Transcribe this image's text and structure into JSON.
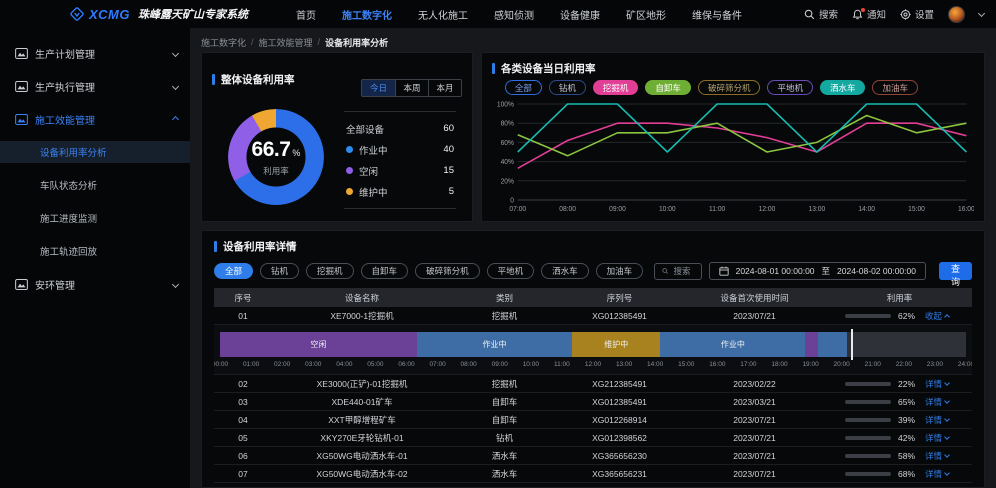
{
  "topbar": {
    "brand": {
      "logo_text": "XCMG",
      "title": "珠峰露天矿山专家系统"
    },
    "nav": [
      {
        "label": "首页",
        "active": false
      },
      {
        "label": "施工数字化",
        "active": true
      },
      {
        "label": "无人化施工",
        "active": false
      },
      {
        "label": "感知侦测",
        "active": false
      },
      {
        "label": "设备健康",
        "active": false
      },
      {
        "label": "矿区地形",
        "active": false
      },
      {
        "label": "维保与备件",
        "active": false
      }
    ],
    "actions": {
      "search": "搜索",
      "notifications": "通知",
      "settings": "设置"
    }
  },
  "sidebar": {
    "items": [
      {
        "label": "生产计划管理",
        "expanded": false,
        "active": false,
        "children": []
      },
      {
        "label": "生产执行管理",
        "expanded": false,
        "active": false,
        "children": []
      },
      {
        "label": "施工效能管理",
        "expanded": true,
        "active": true,
        "children": [
          {
            "label": "设备利用率分析",
            "active": true
          },
          {
            "label": "车队状态分析",
            "active": false
          },
          {
            "label": "施工进度监测",
            "active": false
          },
          {
            "label": "施工轨迹回放",
            "active": false
          }
        ]
      },
      {
        "label": "安环管理",
        "expanded": false,
        "active": false,
        "children": []
      }
    ]
  },
  "breadcrumb": [
    "施工数字化",
    "施工效能管理",
    "设备利用率分析"
  ],
  "overall_panel": {
    "title": "整体设备利用率",
    "tabs": [
      {
        "label": "今日",
        "active": true
      },
      {
        "label": "本周",
        "active": false
      },
      {
        "label": "本月",
        "active": false
      }
    ],
    "donut": {
      "value": "66.7",
      "unit": "%",
      "label": "利用率",
      "segments": [
        {
          "name": "作业中",
          "value": 40,
          "color": "#2d6fe8"
        },
        {
          "name": "空闲",
          "value": 15,
          "color": "#8f5fe8"
        },
        {
          "name": "维护中",
          "value": 5,
          "color": "#f0a732"
        }
      ]
    },
    "stats": [
      {
        "label": "全部设备",
        "value": 60,
        "color": null
      },
      {
        "label": "作业中",
        "value": 40,
        "color": "#2d8cf0"
      },
      {
        "label": "空闲",
        "value": 15,
        "color": "#8f5fe8"
      },
      {
        "label": "维护中",
        "value": 5,
        "color": "#f0a732"
      }
    ]
  },
  "daily_panel": {
    "title": "各类设备当日利用率",
    "filters": [
      {
        "label": "全部",
        "variant": "outline",
        "color": "#2e6de4",
        "text_color": "#7aa2f0"
      },
      {
        "label": "钻机",
        "variant": "outline",
        "color": "#2b4a8f",
        "text_color": "#c6cbd4"
      },
      {
        "label": "挖掘机",
        "variant": "solid",
        "color": "#e23e96",
        "text_color": "#ffffff"
      },
      {
        "label": "自卸车",
        "variant": "solid",
        "color": "#6fae35",
        "text_color": "#ffffff"
      },
      {
        "label": "破碎筛分机",
        "variant": "outline",
        "color": "#8a6d2a",
        "text_color": "#b5a470"
      },
      {
        "label": "平地机",
        "variant": "outline",
        "color": "#6b4bb8",
        "text_color": "#c9c2dd"
      },
      {
        "label": "洒水车",
        "variant": "solid",
        "color": "#13a8a0",
        "text_color": "#ffffff"
      },
      {
        "label": "加油车",
        "variant": "outline",
        "color": "#8f4538",
        "text_color": "#cfa299"
      }
    ],
    "chart_data": {
      "type": "line",
      "x": [
        "07:00",
        "08:00",
        "09:00",
        "10:00",
        "11:00",
        "12:00",
        "13:00",
        "14:00",
        "15:00",
        "16:00"
      ],
      "ylim": [
        0,
        100
      ],
      "yticks": [
        "0",
        "20%",
        "40%",
        "60%",
        "80%",
        "100%"
      ],
      "grid": true,
      "legend_position": "none",
      "series": [
        {
          "name": "挖掘机",
          "color": "#e23e96",
          "values": [
            33,
            62,
            80,
            80,
            75,
            65,
            50,
            80,
            80,
            67
          ]
        },
        {
          "name": "自卸车",
          "color": "#8cc540",
          "values": [
            68,
            46,
            70,
            70,
            80,
            50,
            60,
            88,
            70,
            80
          ]
        },
        {
          "name": "洒水车",
          "color": "#16bdb2",
          "values": [
            50,
            100,
            100,
            50,
            100,
            100,
            50,
            100,
            100,
            50
          ]
        }
      ]
    }
  },
  "details_panel": {
    "title": "设备利用率详情",
    "filters": [
      {
        "label": "全部",
        "active": true
      },
      {
        "label": "钻机",
        "active": false
      },
      {
        "label": "挖掘机",
        "active": false
      },
      {
        "label": "自卸车",
        "active": false
      },
      {
        "label": "破碎筛分机",
        "active": false
      },
      {
        "label": "平地机",
        "active": false
      },
      {
        "label": "洒水车",
        "active": false
      },
      {
        "label": "加油车",
        "active": false
      }
    ],
    "search_placeholder": "搜索",
    "date_from": "2024-08-01 00:00:00",
    "date_separator": "至",
    "date_to": "2024-08-02 00:00:00",
    "query_button": "查询",
    "table": {
      "headers": [
        "序号",
        "设备名称",
        "类别",
        "序列号",
        "设备首次使用时间",
        "利用率"
      ],
      "rows": [
        {
          "no": "01",
          "name": "XE7000-1挖掘机",
          "type": "挖掘机",
          "serial": "XG012385491",
          "first_use": "2023/07/21",
          "utilization": 62,
          "action": "收起",
          "expanded": true
        },
        {
          "no": "02",
          "name": "XE3000(正铲)-01挖掘机",
          "type": "挖掘机",
          "serial": "XG212385491",
          "first_use": "2023/02/22",
          "utilization": 22,
          "action": "详情",
          "expanded": false
        },
        {
          "no": "03",
          "name": "XDE440-01矿车",
          "type": "自卸车",
          "serial": "XG012385491",
          "first_use": "2023/03/21",
          "utilization": 65,
          "action": "详情",
          "expanded": false
        },
        {
          "no": "04",
          "name": "XXT甲醇增程矿车",
          "type": "自卸车",
          "serial": "XG012268914",
          "first_use": "2023/07/21",
          "utilization": 39,
          "action": "详情",
          "expanded": false
        },
        {
          "no": "05",
          "name": "XKY270E牙轮钻机-01",
          "type": "钻机",
          "serial": "XG012398562",
          "first_use": "2023/07/21",
          "utilization": 42,
          "action": "详情",
          "expanded": false
        },
        {
          "no": "06",
          "name": "XG50WG电动洒水车-01",
          "type": "洒水车",
          "serial": "XG365656230",
          "first_use": "2023/07/21",
          "utilization": 58,
          "action": "详情",
          "expanded": false
        },
        {
          "no": "07",
          "name": "XG50WG电动洒水车-02",
          "type": "洒水车",
          "serial": "XG365656231",
          "first_use": "2023/07/21",
          "utilization": 68,
          "action": "详情",
          "expanded": false
        }
      ],
      "timeline": {
        "type": "gantt",
        "range_hours": [
          0,
          24
        ],
        "colors": {
          "idle": "#6b4198",
          "working": "#3e6da6",
          "maintenance": "#a8821f"
        },
        "segments": [
          {
            "label": "空闲",
            "status": "idle",
            "start": 0,
            "end": 6.33
          },
          {
            "label": "作业中",
            "status": "working",
            "start": 6.33,
            "end": 11.33
          },
          {
            "label": "维护中",
            "status": "maintenance",
            "start": 11.33,
            "end": 14.17
          },
          {
            "label": "作业中",
            "status": "working",
            "start": 14.17,
            "end": 18.83
          },
          {
            "label": "",
            "status": "idle",
            "start": 18.83,
            "end": 19.25
          },
          {
            "label": "",
            "status": "working",
            "start": 19.25,
            "end": 20.17
          }
        ],
        "cursor_hour": 20.3,
        "ticks": [
          "00:00",
          "01:00",
          "02:00",
          "03:00",
          "04:00",
          "05:00",
          "06:00",
          "07:00",
          "08:00",
          "09:00",
          "10:00",
          "11:00",
          "12:00",
          "13:00",
          "14:00",
          "15:00",
          "16:00",
          "17:00",
          "18:00",
          "19:00",
          "20:00",
          "21:00",
          "22:00",
          "23:00",
          "24:00"
        ]
      }
    }
  }
}
